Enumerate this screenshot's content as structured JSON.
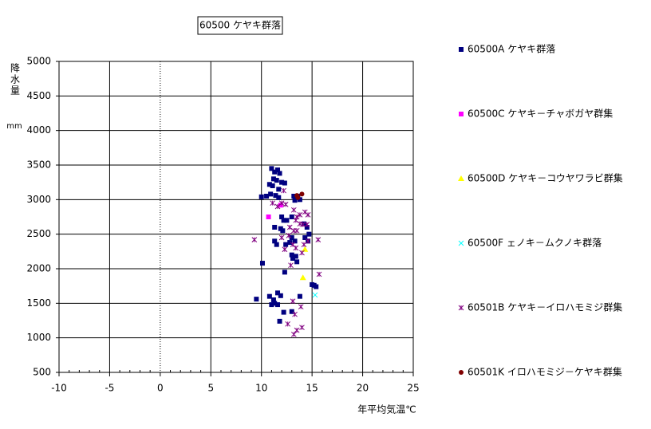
{
  "chart_data": {
    "type": "scatter",
    "title": "60500 ケヤキ群落",
    "y_label": "降水量",
    "y_unit": "mm",
    "x_label": "年平均気温℃",
    "xlim": [
      -10,
      25
    ],
    "xticks": [
      -10,
      -5,
      0,
      5,
      10,
      15,
      20,
      25
    ],
    "ylim": [
      500,
      5000
    ],
    "yticks": [
      500,
      1000,
      1500,
      2000,
      2500,
      3000,
      3500,
      4000,
      4500,
      5000
    ],
    "grid": true,
    "legend": "right",
    "series": [
      {
        "name": "60500A ケヤキ群落",
        "color": "#000080",
        "marker": "square",
        "x": [
          11.0,
          11.3,
          11.6,
          11.8,
          11.2,
          11.5,
          10.8,
          11.1,
          12.0,
          12.3,
          11.7,
          10.9,
          10.0,
          10.5,
          11.4,
          11.7,
          13.2,
          13.3,
          13.6,
          13.8,
          12.0,
          12.2,
          12.5,
          13.0,
          11.3,
          11.9,
          12.1,
          14.2,
          14.5,
          14.7,
          14.3,
          14.6,
          13.0,
          13.3,
          11.3,
          11.5,
          12.4,
          12.8,
          13.0,
          13.1,
          13.5,
          13.4,
          10.1,
          12.3,
          15.0,
          15.2,
          15.4,
          10.8,
          11.2,
          11.6,
          11.9,
          13.8,
          11.0,
          11.3,
          11.6,
          9.5,
          12.2,
          11.8,
          13.0
        ],
        "values": [
          3450,
          3400,
          3430,
          3380,
          3300,
          3280,
          3220,
          3200,
          3250,
          3240,
          3150,
          3080,
          3040,
          3050,
          3060,
          3030,
          3050,
          2990,
          3050,
          3000,
          2750,
          2700,
          2700,
          2750,
          2600,
          2580,
          2550,
          2650,
          2600,
          2500,
          2450,
          2400,
          2450,
          2400,
          2400,
          2350,
          2350,
          2380,
          2200,
          2150,
          2100,
          2180,
          2080,
          1950,
          1770,
          1760,
          1740,
          1600,
          1550,
          1650,
          1610,
          1600,
          1480,
          1500,
          1480,
          1560,
          1370,
          1240,
          1380
        ]
      },
      {
        "name": "60500C ケヤキ－チャボガヤ群集",
        "color": "#ff00ff",
        "marker": "square",
        "x": [
          10.7,
          11.9
        ],
        "values": [
          2750,
          2920
        ]
      },
      {
        "name": "60500D ケヤキ－コウヤワラビ群集",
        "color": "#ffff00",
        "marker": "triangle",
        "x": [
          14.1,
          14.3
        ],
        "values": [
          1870,
          2280
        ]
      },
      {
        "name": "60500F ェノキ－ムクノキ群落",
        "color": "#00ffff",
        "marker": "x",
        "x": [
          15.3
        ],
        "values": [
          1620
        ]
      },
      {
        "name": "60501B ケヤキ－イロハモミジ群集",
        "color": "#800080",
        "marker": "asterisk",
        "x": [
          9.3,
          11.1,
          11.6,
          12.0,
          12.4,
          12.2,
          13.2,
          13.5,
          13.8,
          14.3,
          14.6,
          13.4,
          13.8,
          14.1,
          12.8,
          13.2,
          13.5,
          12.7,
          13.1,
          14.0,
          14.2,
          13.4,
          14.6,
          15.6,
          12.9,
          15.7,
          13.1,
          13.9,
          13.3,
          12.6,
          13.5,
          14.0,
          13.2,
          14.5,
          12.0,
          12.3
        ],
        "values": [
          2420,
          2950,
          2900,
          2950,
          2930,
          3130,
          2850,
          2750,
          2780,
          2820,
          2780,
          2700,
          2650,
          2640,
          2600,
          2550,
          2550,
          2480,
          2350,
          2230,
          2350,
          2300,
          2400,
          2420,
          2050,
          1920,
          1530,
          1450,
          1340,
          1200,
          1110,
          1150,
          1050,
          2640,
          2450,
          2280
        ]
      },
      {
        "name": "60501K イロハモミジ－ケヤキ群集",
        "color": "#800000",
        "marker": "circle",
        "x": [
          13.5,
          14.0,
          13.6
        ],
        "values": [
          3060,
          3080,
          3030
        ]
      }
    ]
  }
}
